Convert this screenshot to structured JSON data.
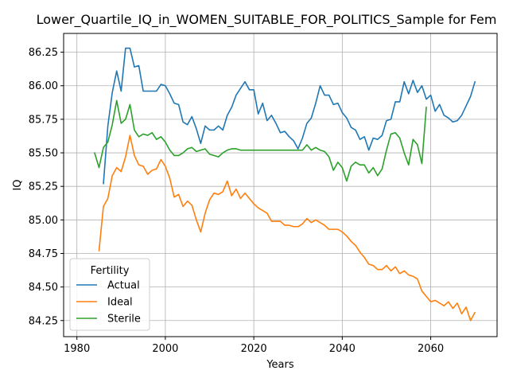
{
  "chart_data": {
    "type": "line",
    "title": "Lower_Quartile_IQ_in_WOMEN_SUITABLE_FOR_POLITICS_Sample for Fem",
    "xlabel": "Years",
    "ylabel": "IQ",
    "xlim": [
      1977,
      2075
    ],
    "ylim": [
      84.13,
      86.39
    ],
    "xticks": [
      1980,
      2000,
      2020,
      2040,
      2060
    ],
    "xtick_labels": [
      "1980",
      "2000",
      "2020",
      "2040",
      "2060"
    ],
    "yticks": [
      84.25,
      84.5,
      84.75,
      85.0,
      85.25,
      85.5,
      85.75,
      86.0,
      86.25
    ],
    "ytick_labels": [
      "84.25",
      "84.50",
      "84.75",
      "85.00",
      "85.25",
      "85.50",
      "85.75",
      "86.00",
      "86.25"
    ],
    "grid": true,
    "legend": {
      "title": "Fertility",
      "placement": "lower-left"
    },
    "series": [
      {
        "name": "Actual",
        "color": "#1f77b4",
        "x": [
          1986,
          1987,
          1988,
          1989,
          1990,
          1991,
          1992,
          1993,
          1994,
          1995,
          1996,
          1997,
          1998,
          1999,
          2000,
          2001,
          2002,
          2003,
          2004,
          2005,
          2006,
          2007,
          2008,
          2009,
          2010,
          2011,
          2012,
          2013,
          2014,
          2015,
          2016,
          2017,
          2018,
          2019,
          2020,
          2021,
          2022,
          2023,
          2024,
          2025,
          2026,
          2027,
          2028,
          2029,
          2030,
          2031,
          2032,
          2033,
          2034,
          2035,
          2036,
          2037,
          2038,
          2039,
          2040,
          2041,
          2042,
          2043,
          2044,
          2045,
          2046,
          2047,
          2048,
          2049,
          2050,
          2051,
          2052,
          2053,
          2054,
          2055,
          2056,
          2057,
          2058,
          2059,
          2060,
          2061,
          2062,
          2063,
          2064,
          2065,
          2066,
          2067,
          2068,
          2069,
          2070
        ],
        "y": [
          85.27,
          85.7,
          85.95,
          86.11,
          85.96,
          86.28,
          86.28,
          86.14,
          86.15,
          85.96,
          85.96,
          85.96,
          85.96,
          86.01,
          86.0,
          85.94,
          85.87,
          85.86,
          85.73,
          85.71,
          85.77,
          85.68,
          85.57,
          85.7,
          85.67,
          85.67,
          85.7,
          85.67,
          85.78,
          85.84,
          85.93,
          85.98,
          86.03,
          85.97,
          85.97,
          85.79,
          85.87,
          85.74,
          85.78,
          85.72,
          85.65,
          85.66,
          85.62,
          85.59,
          85.53,
          85.61,
          85.72,
          85.76,
          85.87,
          86.0,
          85.93,
          85.93,
          85.86,
          85.87,
          85.8,
          85.76,
          85.69,
          85.67,
          85.6,
          85.62,
          85.52,
          85.61,
          85.6,
          85.63,
          85.74,
          85.75,
          85.88,
          85.88,
          86.03,
          85.94,
          86.04,
          85.95,
          86.0,
          85.9,
          85.93,
          85.81,
          85.86,
          85.78,
          85.76,
          85.73,
          85.74,
          85.78,
          85.85,
          85.92,
          86.03
        ]
      },
      {
        "name": "Ideal",
        "color": "#ff7f0e",
        "x": [
          1985,
          1986,
          1987,
          1988,
          1989,
          1990,
          1991,
          1992,
          1993,
          1994,
          1995,
          1996,
          1997,
          1998,
          1999,
          2000,
          2001,
          2002,
          2003,
          2004,
          2005,
          2006,
          2007,
          2008,
          2009,
          2010,
          2011,
          2012,
          2013,
          2014,
          2015,
          2016,
          2017,
          2018,
          2019,
          2020,
          2021,
          2022,
          2023,
          2024,
          2025,
          2026,
          2027,
          2028,
          2029,
          2030,
          2031,
          2032,
          2033,
          2034,
          2035,
          2036,
          2037,
          2038,
          2039,
          2040,
          2041,
          2042,
          2043,
          2044,
          2045,
          2046,
          2047,
          2048,
          2049,
          2050,
          2051,
          2052,
          2053,
          2054,
          2055,
          2056,
          2057,
          2058,
          2059,
          2060,
          2061,
          2062,
          2063,
          2064,
          2065,
          2066,
          2067,
          2068,
          2069,
          2070
        ],
        "y": [
          84.77,
          85.1,
          85.16,
          85.33,
          85.39,
          85.36,
          85.47,
          85.63,
          85.48,
          85.41,
          85.4,
          85.34,
          85.37,
          85.38,
          85.45,
          85.4,
          85.31,
          85.17,
          85.19,
          85.1,
          85.14,
          85.11,
          85.0,
          84.91,
          85.05,
          85.15,
          85.2,
          85.19,
          85.21,
          85.29,
          85.18,
          85.23,
          85.16,
          85.2,
          85.16,
          85.12,
          85.09,
          85.07,
          85.05,
          84.99,
          84.99,
          84.99,
          84.96,
          84.96,
          84.95,
          84.95,
          84.97,
          85.01,
          84.98,
          85.0,
          84.98,
          84.96,
          84.93,
          84.93,
          84.93,
          84.91,
          84.88,
          84.84,
          84.81,
          84.76,
          84.72,
          84.67,
          84.66,
          84.63,
          84.63,
          84.66,
          84.62,
          84.65,
          84.6,
          84.62,
          84.59,
          84.58,
          84.56,
          84.47,
          84.43,
          84.39,
          84.4,
          84.38,
          84.36,
          84.39,
          84.34,
          84.38,
          84.3,
          84.35,
          84.25,
          84.31
        ]
      },
      {
        "name": "Sterile",
        "color": "#2ca02c",
        "x": [
          1984,
          1985,
          1986,
          1987,
          1988,
          1989,
          1990,
          1991,
          1992,
          1993,
          1994,
          1995,
          1996,
          1997,
          1998,
          1999,
          2000,
          2001,
          2002,
          2003,
          2004,
          2005,
          2006,
          2007,
          2008,
          2009,
          2010,
          2011,
          2012,
          2013,
          2014,
          2015,
          2016,
          2017,
          2018,
          2019,
          2020,
          2021,
          2022,
          2023,
          2024,
          2025,
          2026,
          2027,
          2028,
          2029,
          2030,
          2031,
          2032,
          2033,
          2034,
          2035,
          2036,
          2037,
          2038,
          2039,
          2040,
          2041,
          2042,
          2043,
          2044,
          2045,
          2046,
          2047,
          2048,
          2049,
          2050,
          2051,
          2052,
          2053,
          2054,
          2055,
          2056,
          2057,
          2058,
          2059
        ],
        "y": [
          85.5,
          85.39,
          85.54,
          85.58,
          85.71,
          85.89,
          85.72,
          85.75,
          85.86,
          85.67,
          85.62,
          85.64,
          85.63,
          85.65,
          85.6,
          85.62,
          85.58,
          85.52,
          85.48,
          85.48,
          85.5,
          85.53,
          85.54,
          85.51,
          85.52,
          85.53,
          85.49,
          85.48,
          85.47,
          85.5,
          85.52,
          85.53,
          85.53,
          85.52,
          85.52,
          85.52,
          85.52,
          85.52,
          85.52,
          85.52,
          85.52,
          85.52,
          85.52,
          85.52,
          85.52,
          85.52,
          85.52,
          85.52,
          85.56,
          85.52,
          85.54,
          85.52,
          85.51,
          85.47,
          85.37,
          85.43,
          85.39,
          85.29,
          85.4,
          85.43,
          85.41,
          85.41,
          85.35,
          85.39,
          85.33,
          85.38,
          85.52,
          85.64,
          85.65,
          85.61,
          85.5,
          85.41,
          85.6,
          85.56,
          85.42,
          85.84
        ]
      }
    ]
  }
}
